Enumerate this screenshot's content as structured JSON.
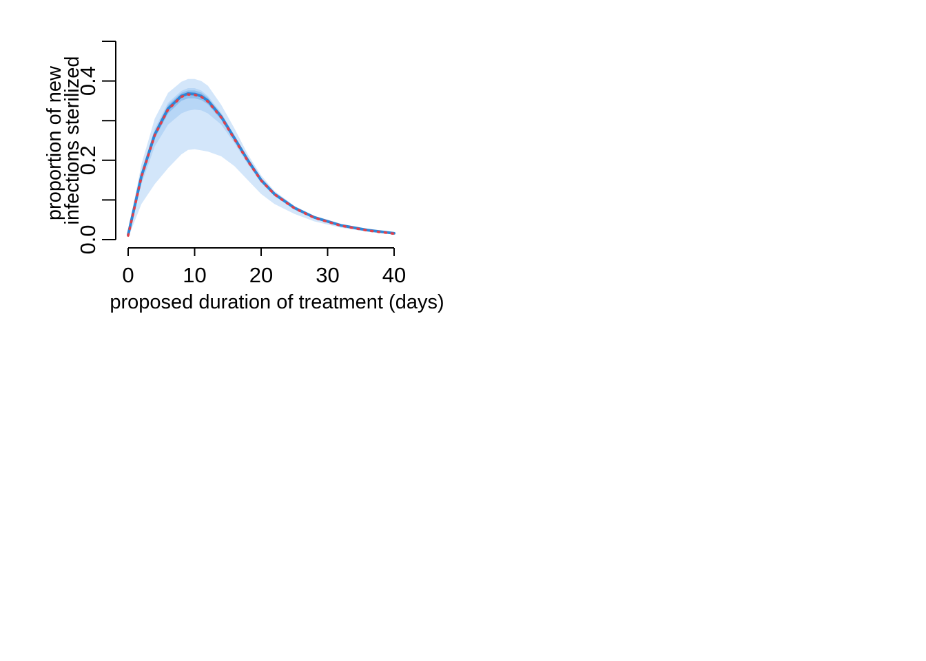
{
  "chart_data": {
    "type": "line",
    "title": "",
    "xlabel": "proposed duration of treatment (days)",
    "ylabel_lines": [
      "proportion of new",
      "infections sterilized"
    ],
    "xlim": [
      0,
      40
    ],
    "ylim": [
      0,
      0.5
    ],
    "xticks": [
      0,
      10,
      20,
      30,
      40
    ],
    "xtick_labels": [
      "0",
      "10",
      "20",
      "30",
      "40"
    ],
    "yticks": [
      0,
      0.1,
      0.2,
      0.3,
      0.4,
      0.5
    ],
    "ytick_labels": [
      "0.0",
      "",
      "0.2",
      "",
      "0.4",
      ""
    ],
    "grid": false,
    "legend": "none",
    "x": [
      0,
      2,
      4,
      6,
      8,
      9,
      10,
      11,
      12,
      14,
      16,
      18,
      20,
      22,
      25,
      28,
      32,
      36,
      40
    ],
    "series": [
      {
        "role": "median",
        "style": "solid",
        "color": "#2e86d6",
        "values": [
          0.012,
          0.16,
          0.265,
          0.33,
          0.362,
          0.368,
          0.367,
          0.362,
          0.35,
          0.31,
          0.255,
          0.2,
          0.15,
          0.115,
          0.08,
          0.056,
          0.036,
          0.024,
          0.016
        ]
      },
      {
        "role": "reference",
        "style": "dotted",
        "color": "#e0404a",
        "values": [
          0.01,
          0.158,
          0.263,
          0.328,
          0.36,
          0.366,
          0.365,
          0.36,
          0.348,
          0.308,
          0.253,
          0.198,
          0.149,
          0.114,
          0.079,
          0.055,
          0.035,
          0.023,
          0.015
        ]
      }
    ],
    "bands": [
      {
        "level": "outer",
        "color": "#d3e6fa",
        "lower": [
          0.005,
          0.09,
          0.14,
          0.18,
          0.215,
          0.226,
          0.228,
          0.225,
          0.222,
          0.21,
          0.185,
          0.15,
          0.115,
          0.09,
          0.065,
          0.046,
          0.03,
          0.02,
          0.013
        ],
        "upper": [
          0.02,
          0.19,
          0.305,
          0.37,
          0.398,
          0.405,
          0.405,
          0.4,
          0.388,
          0.34,
          0.28,
          0.215,
          0.162,
          0.123,
          0.085,
          0.059,
          0.038,
          0.025,
          0.017
        ]
      },
      {
        "level": "middle",
        "color": "#b7d6f6",
        "lower": [
          0.008,
          0.14,
          0.235,
          0.29,
          0.318,
          0.325,
          0.328,
          0.326,
          0.318,
          0.29,
          0.243,
          0.19,
          0.143,
          0.11,
          0.077,
          0.054,
          0.035,
          0.023,
          0.015
        ],
        "upper": [
          0.016,
          0.17,
          0.28,
          0.345,
          0.375,
          0.382,
          0.382,
          0.376,
          0.362,
          0.32,
          0.263,
          0.205,
          0.155,
          0.118,
          0.082,
          0.057,
          0.037,
          0.024,
          0.016
        ]
      },
      {
        "level": "inner",
        "color": "#8fbfee",
        "lower": [
          0.01,
          0.153,
          0.255,
          0.318,
          0.35,
          0.356,
          0.356,
          0.352,
          0.341,
          0.302,
          0.249,
          0.196,
          0.147,
          0.113,
          0.079,
          0.055,
          0.036,
          0.024,
          0.016
        ],
        "upper": [
          0.014,
          0.165,
          0.273,
          0.34,
          0.37,
          0.376,
          0.376,
          0.371,
          0.358,
          0.316,
          0.26,
          0.203,
          0.153,
          0.117,
          0.081,
          0.057,
          0.037,
          0.024,
          0.016
        ]
      }
    ]
  }
}
